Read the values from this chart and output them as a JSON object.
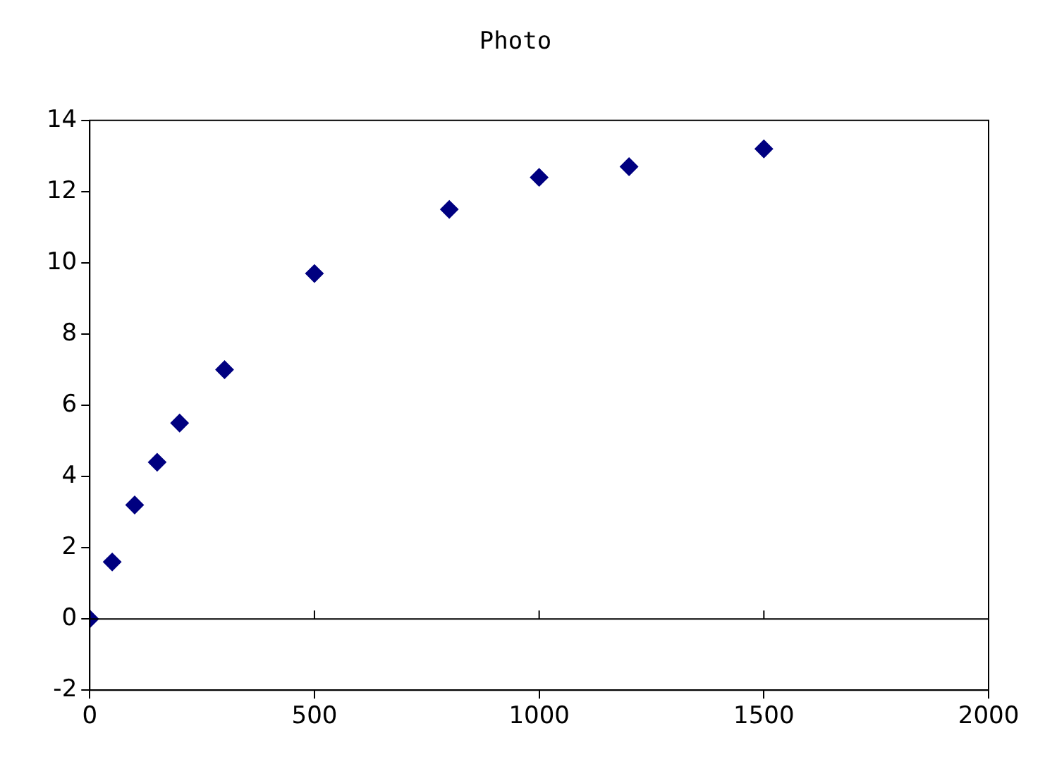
{
  "chart_data": {
    "type": "scatter",
    "title": "Photo",
    "x": [
      0,
      50,
      100,
      150,
      200,
      300,
      500,
      800,
      1000,
      1200,
      1500
    ],
    "series": [
      {
        "color": "#000080",
        "values": [
          0,
          1.6,
          3.2,
          4.4,
          5.5,
          7.0,
          9.7,
          11.5,
          12.4,
          12.7,
          13.2
        ]
      }
    ],
    "xlim": [
      0,
      2000
    ],
    "xticks": [
      0,
      500,
      1000,
      1500,
      2000
    ],
    "ylim": [
      -2,
      14
    ],
    "yticks": [
      -2,
      0,
      2,
      4,
      6,
      8,
      10,
      12,
      14
    ],
    "ref_lines": [
      {
        "axis": "y",
        "value": 0,
        "color": "#000000"
      }
    ],
    "marker": "diamond",
    "grid": false,
    "legend": false
  }
}
